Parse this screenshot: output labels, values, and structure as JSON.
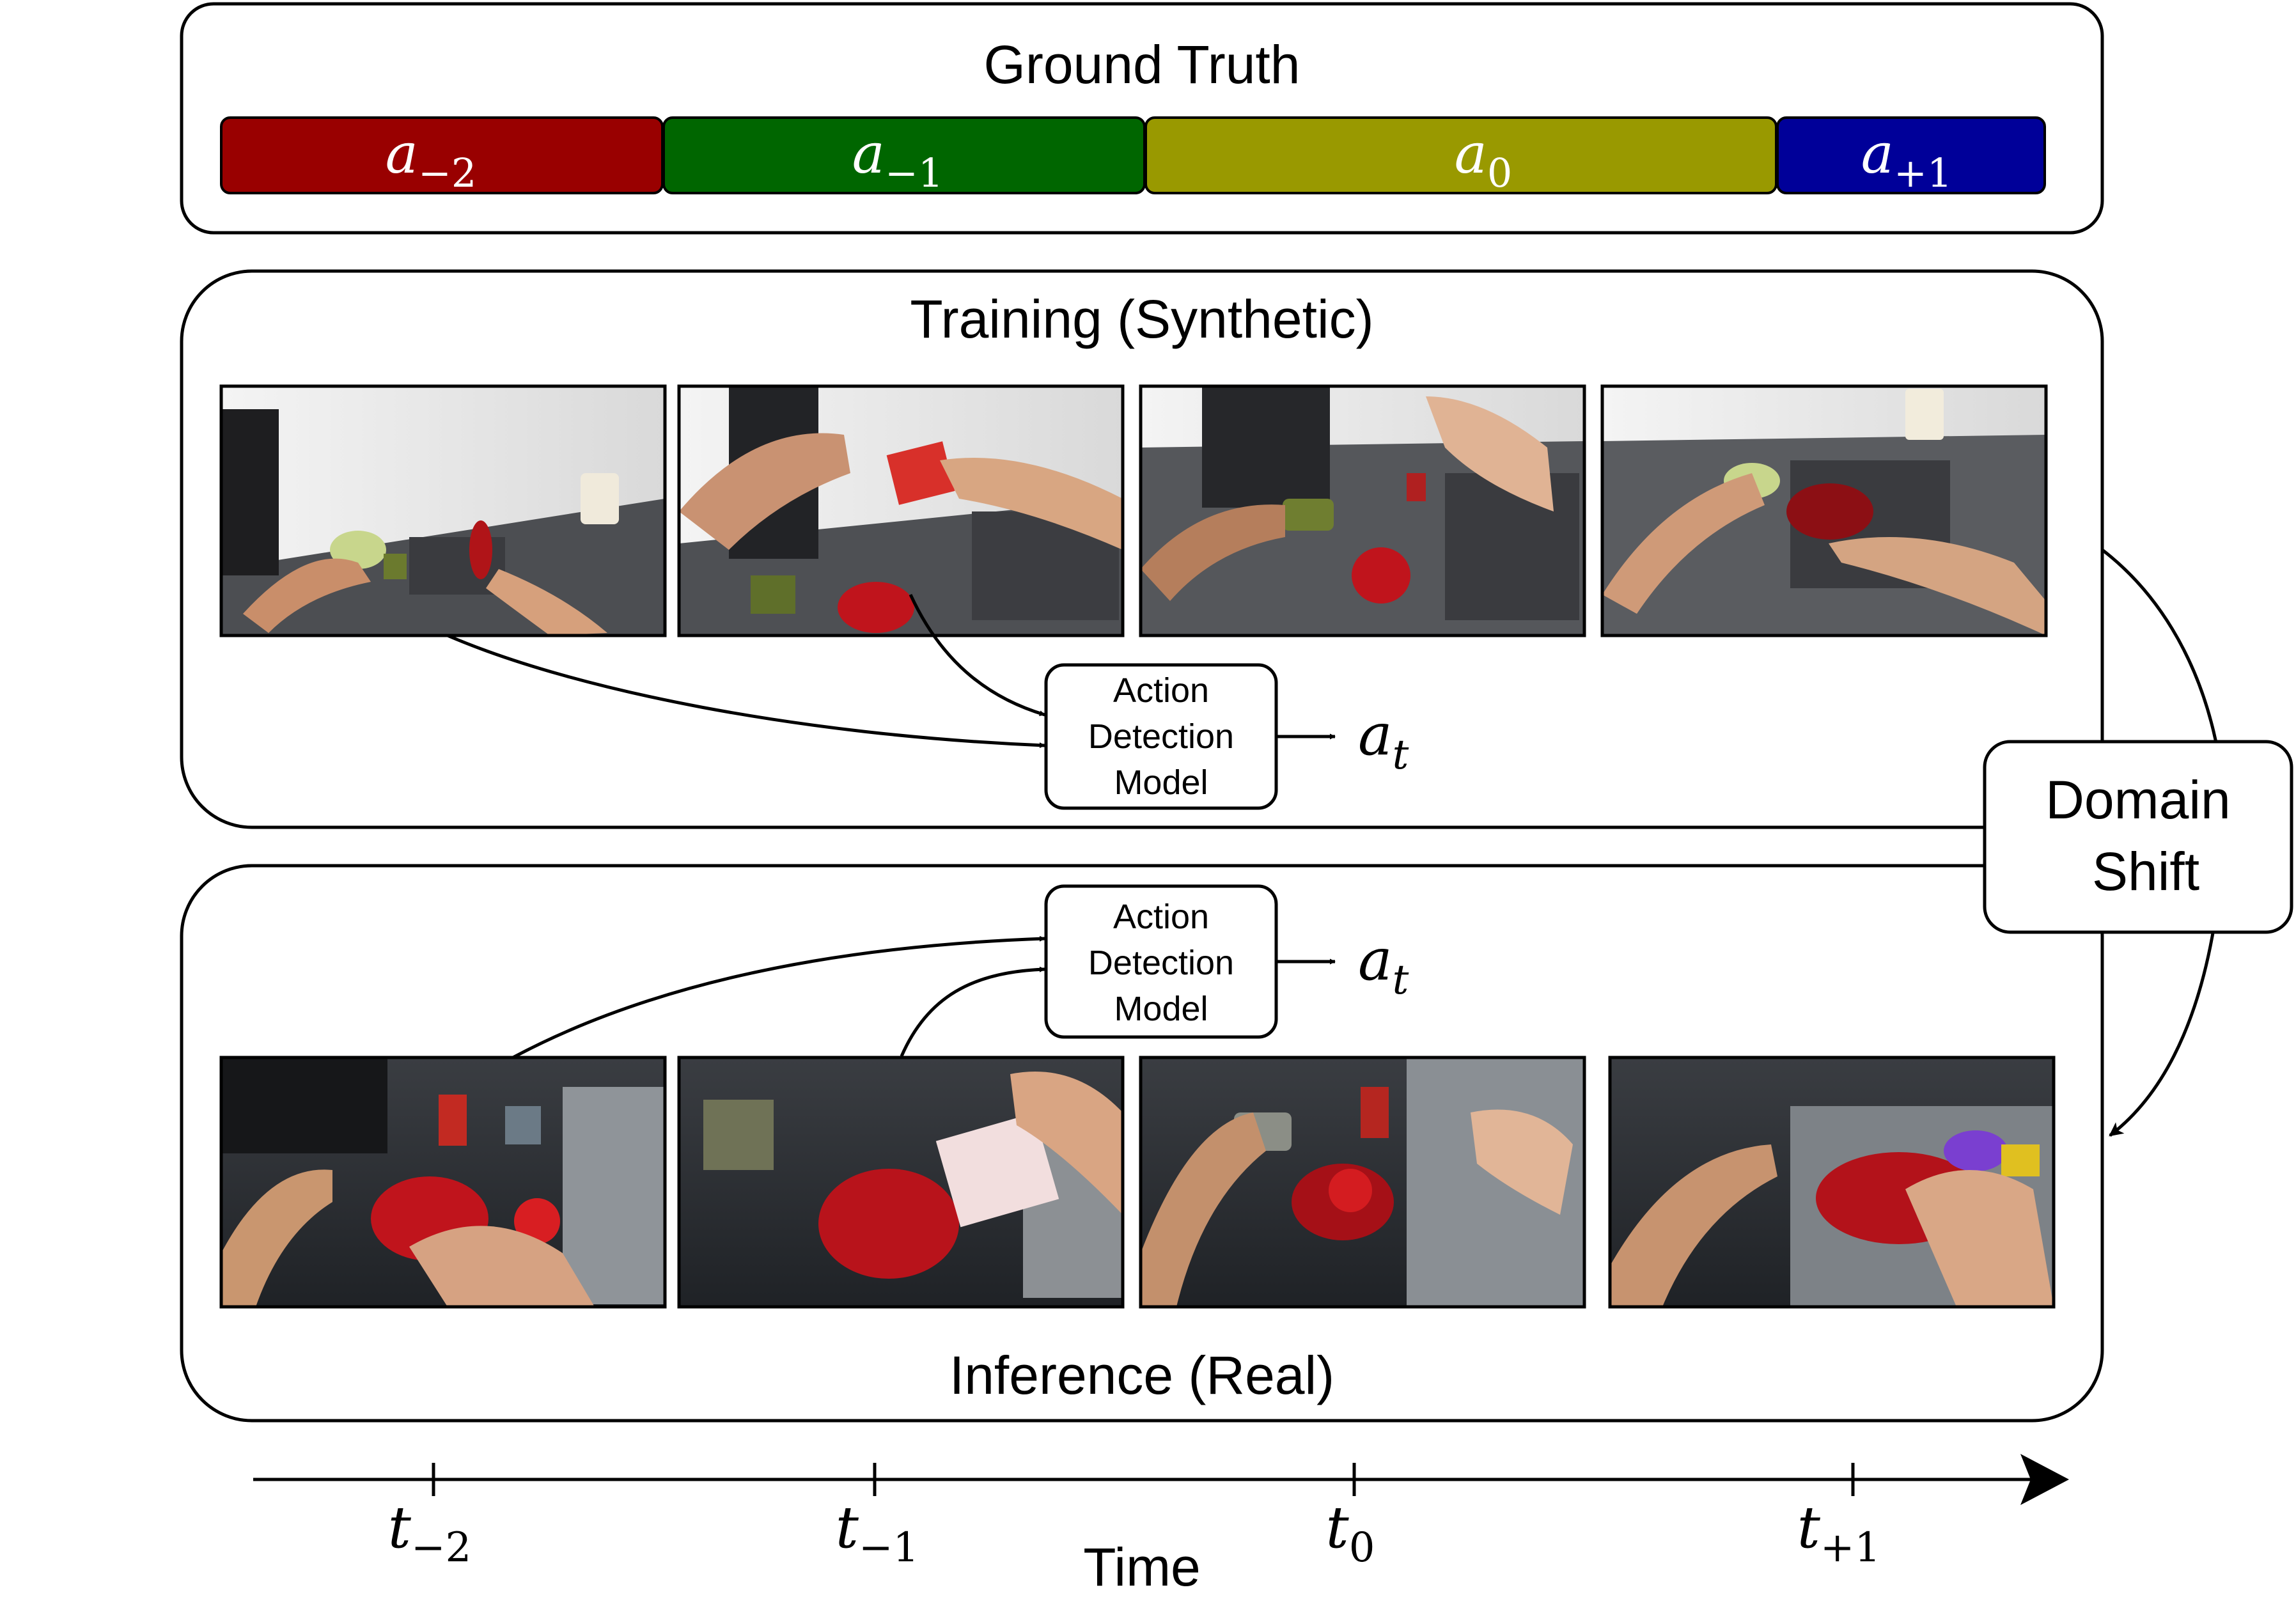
{
  "ground_truth": {
    "title": "Ground Truth",
    "segments": [
      {
        "base": "a",
        "sub": "−2",
        "color": "#990000"
      },
      {
        "base": "a",
        "sub": "−1",
        "color": "#006600"
      },
      {
        "base": "a",
        "sub": "0",
        "color": "#999900"
      },
      {
        "base": "a",
        "sub": "+1",
        "color": "#000099"
      }
    ]
  },
  "training": {
    "title": "Training (Synthetic)",
    "model_lines": [
      "Action",
      "Detection",
      "Model"
    ],
    "output": {
      "base": "a",
      "sub": "t"
    }
  },
  "inference": {
    "title": "Inference (Real)",
    "model_lines": [
      "Action",
      "Detection",
      "Model"
    ],
    "output": {
      "base": "a",
      "sub": "t"
    }
  },
  "domain_shift": {
    "lines": [
      "Domain",
      "Shift"
    ]
  },
  "timeline": {
    "label": "Time",
    "ticks": [
      {
        "base": "t",
        "sub": "−2"
      },
      {
        "base": "t",
        "sub": "−1"
      },
      {
        "base": "t",
        "sub": "0"
      },
      {
        "base": "t",
        "sub": "+1"
      }
    ]
  },
  "colors": {
    "synthetic_wall": "#ececec",
    "synthetic_counter": "#4a4c50",
    "real_counter": "#2c2f33",
    "bowl": "#c0141c"
  }
}
